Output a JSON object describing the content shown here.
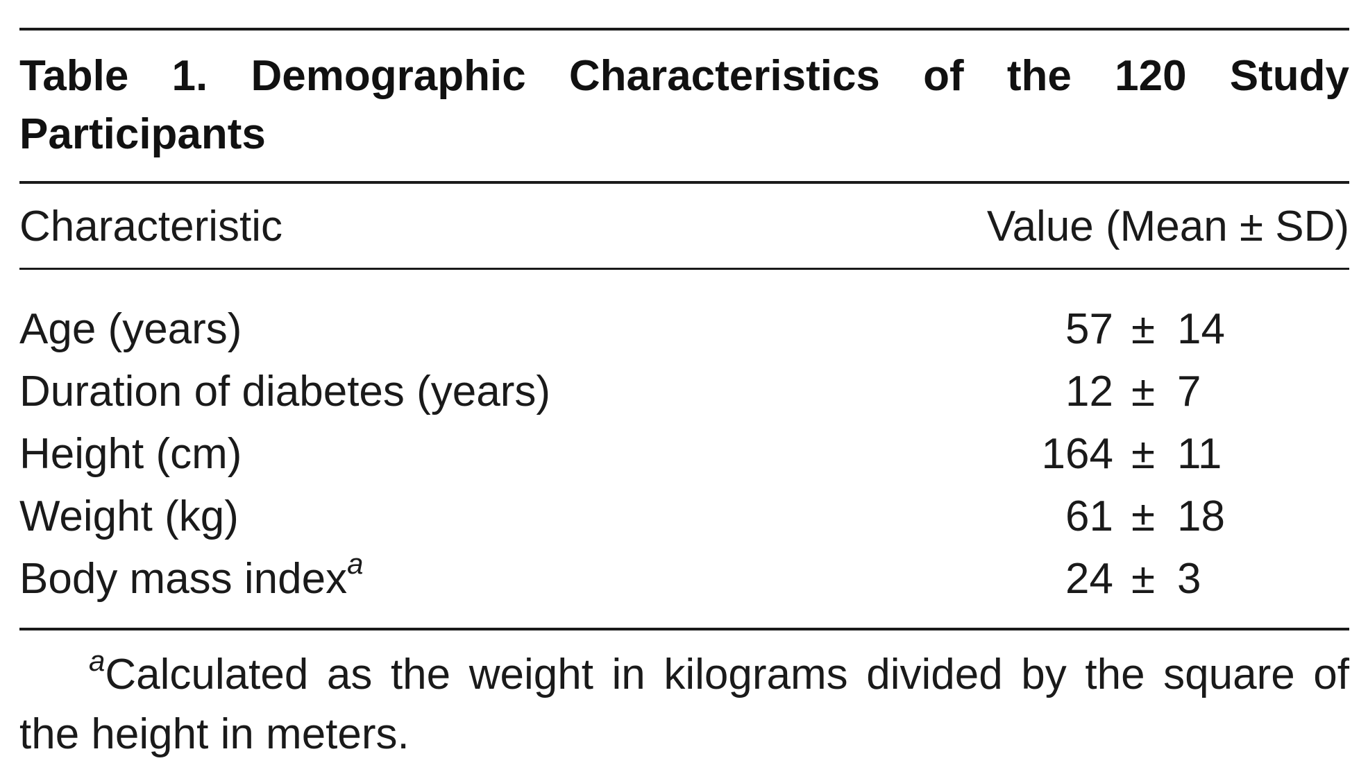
{
  "table": {
    "caption": "Table 1. Demographic Characteristics of the 120 Study Participants",
    "header": {
      "characteristic": "Characteristic",
      "value": "Value (Mean ± SD)"
    },
    "rows": [
      {
        "label": "Age (years)",
        "marker": "",
        "mean": "57",
        "pm": "±",
        "sd": "14"
      },
      {
        "label": "Duration of diabetes (years)",
        "marker": "",
        "mean": "12",
        "pm": "±",
        "sd": "7"
      },
      {
        "label": "Height (cm)",
        "marker": "",
        "mean": "164",
        "pm": "±",
        "sd": "11"
      },
      {
        "label": "Weight (kg)",
        "marker": "",
        "mean": "61",
        "pm": "±",
        "sd": "18"
      },
      {
        "label": "Body mass index",
        "marker": "a",
        "mean": "24",
        "pm": "±",
        "sd": "3"
      }
    ],
    "footnote": {
      "marker": "a",
      "text": "Calculated as the weight in kilograms divided by the square of the height in meters."
    }
  }
}
